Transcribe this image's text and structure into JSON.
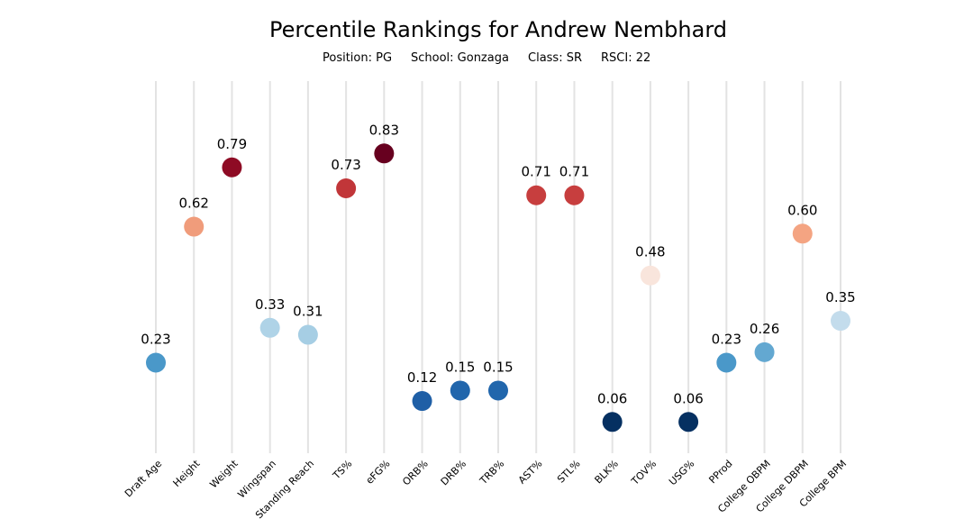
{
  "chart_data": {
    "type": "scatter",
    "title": "Percentile Rankings for Andrew Nembhard",
    "subtitle": {
      "position": "Position: PG",
      "school": "School: Gonzaga",
      "class": "Class: SR",
      "rsci": "RSCI: 22"
    },
    "categories": [
      "Draft Age",
      "Height",
      "Weight",
      "Wingspan",
      "Standing Reach",
      "TS%",
      "eFG%",
      "ORB%",
      "DRB%",
      "TRB%",
      "AST%",
      "STL%",
      "BLK%",
      "TOV%",
      "USG%",
      "PProd",
      "College OBPM",
      "College DBPM",
      "College BPM"
    ],
    "values": [
      0.23,
      0.62,
      0.79,
      0.33,
      0.31,
      0.73,
      0.83,
      0.12,
      0.15,
      0.15,
      0.71,
      0.71,
      0.06,
      0.48,
      0.06,
      0.23,
      0.26,
      0.6,
      0.35
    ],
    "value_labels": [
      "0.23",
      "0.62",
      "0.79",
      "0.33",
      "0.31",
      "0.73",
      "0.83",
      "0.12",
      "0.15",
      "0.15",
      "0.71",
      "0.71",
      "0.06",
      "0.48",
      "0.06",
      "0.23",
      "0.26",
      "0.60",
      "0.35"
    ],
    "colors": [
      "#4a98c9",
      "#f09c7b",
      "#8e0b24",
      "#afd3e7",
      "#a6cee4",
      "#c13639",
      "#67001f",
      "#1f5fa6",
      "#2166ac",
      "#2166ac",
      "#c73e3e",
      "#c73e3e",
      "#053061",
      "#f9e5dc",
      "#053061",
      "#4a98c9",
      "#63a8d1",
      "#f4a482",
      "#c3dcec"
    ],
    "ylim": [
      0,
      1
    ],
    "grid": "vertical",
    "legend": "none"
  }
}
